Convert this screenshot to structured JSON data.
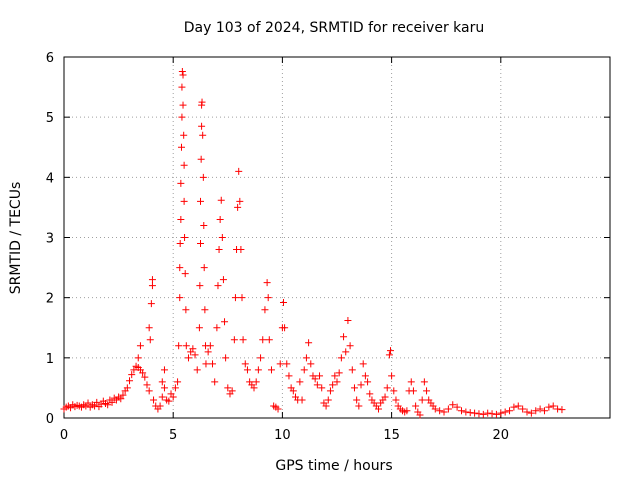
{
  "chart_data": {
    "type": "scatter",
    "title": "Day 103 of 2024, SRMTID for receiver karu",
    "xlabel": "GPS time / hours",
    "ylabel": "SRMTID / TECUs",
    "xlim": [
      0,
      25
    ],
    "ylim": [
      0,
      6
    ],
    "xticks": [
      0,
      5,
      10,
      15,
      20
    ],
    "yticks": [
      0,
      1,
      2,
      3,
      4,
      5,
      6
    ],
    "grid": true,
    "marker": "plus",
    "color": "#ff0000",
    "series": [
      {
        "name": "SRMTID",
        "points": [
          [
            0.0,
            0.15
          ],
          [
            0.1,
            0.18
          ],
          [
            0.2,
            0.2
          ],
          [
            0.3,
            0.17
          ],
          [
            0.4,
            0.22
          ],
          [
            0.5,
            0.19
          ],
          [
            0.6,
            0.21
          ],
          [
            0.7,
            0.2
          ],
          [
            0.8,
            0.18
          ],
          [
            0.9,
            0.22
          ],
          [
            1.0,
            0.2
          ],
          [
            1.1,
            0.25
          ],
          [
            1.2,
            0.18
          ],
          [
            1.3,
            0.22
          ],
          [
            1.4,
            0.2
          ],
          [
            1.5,
            0.26
          ],
          [
            1.6,
            0.19
          ],
          [
            1.7,
            0.23
          ],
          [
            1.8,
            0.28
          ],
          [
            1.9,
            0.24
          ],
          [
            2.0,
            0.22
          ],
          [
            2.1,
            0.3
          ],
          [
            2.2,
            0.26
          ],
          [
            2.3,
            0.33
          ],
          [
            2.4,
            0.3
          ],
          [
            2.5,
            0.35
          ],
          [
            2.6,
            0.32
          ],
          [
            2.7,
            0.38
          ],
          [
            2.8,
            0.45
          ],
          [
            2.9,
            0.5
          ],
          [
            3.0,
            0.62
          ],
          [
            3.1,
            0.72
          ],
          [
            3.2,
            0.8
          ],
          [
            3.3,
            0.86
          ],
          [
            3.4,
            0.84
          ],
          [
            3.5,
            0.8
          ],
          [
            3.6,
            0.75
          ],
          [
            3.7,
            0.68
          ],
          [
            3.8,
            0.55
          ],
          [
            3.9,
            0.45
          ],
          [
            3.4,
            1.0
          ],
          [
            3.5,
            1.2
          ],
          [
            3.9,
            1.5
          ],
          [
            4.0,
            1.9
          ],
          [
            4.05,
            2.2
          ],
          [
            4.05,
            2.3
          ],
          [
            3.95,
            1.3
          ],
          [
            4.1,
            0.3
          ],
          [
            4.2,
            0.2
          ],
          [
            4.3,
            0.15
          ],
          [
            4.4,
            0.2
          ],
          [
            4.5,
            0.35
          ],
          [
            4.6,
            0.5
          ],
          [
            4.7,
            0.3
          ],
          [
            4.8,
            0.28
          ],
          [
            4.9,
            0.4
          ],
          [
            5.0,
            0.35
          ],
          [
            4.5,
            0.6
          ],
          [
            4.6,
            0.8
          ],
          [
            5.1,
            0.5
          ],
          [
            5.2,
            0.6
          ],
          [
            5.25,
            1.2
          ],
          [
            5.3,
            2.0
          ],
          [
            5.3,
            2.5
          ],
          [
            5.32,
            2.9
          ],
          [
            5.35,
            3.3
          ],
          [
            5.35,
            3.9
          ],
          [
            5.38,
            4.5
          ],
          [
            5.4,
            5.0
          ],
          [
            5.4,
            5.5
          ],
          [
            5.42,
            5.76
          ],
          [
            5.45,
            5.7
          ],
          [
            5.45,
            5.2
          ],
          [
            5.48,
            4.7
          ],
          [
            5.5,
            4.2
          ],
          [
            5.5,
            3.6
          ],
          [
            5.52,
            3.0
          ],
          [
            5.55,
            2.4
          ],
          [
            5.58,
            1.8
          ],
          [
            5.6,
            1.2
          ],
          [
            5.7,
            1.0
          ],
          [
            5.8,
            1.1
          ],
          [
            5.9,
            1.15
          ],
          [
            6.0,
            1.05
          ],
          [
            6.1,
            0.8
          ],
          [
            6.2,
            1.5
          ],
          [
            6.22,
            2.2
          ],
          [
            6.25,
            2.9
          ],
          [
            6.25,
            3.6
          ],
          [
            6.28,
            4.3
          ],
          [
            6.3,
            4.85
          ],
          [
            6.3,
            5.2
          ],
          [
            6.32,
            5.25
          ],
          [
            6.35,
            4.7
          ],
          [
            6.38,
            4.0
          ],
          [
            6.4,
            3.2
          ],
          [
            6.42,
            2.5
          ],
          [
            6.45,
            1.8
          ],
          [
            6.48,
            1.2
          ],
          [
            6.5,
            0.9
          ],
          [
            6.6,
            1.1
          ],
          [
            6.7,
            1.2
          ],
          [
            6.8,
            0.9
          ],
          [
            6.9,
            0.6
          ],
          [
            7.0,
            1.5
          ],
          [
            7.05,
            2.2
          ],
          [
            7.1,
            2.8
          ],
          [
            7.15,
            3.3
          ],
          [
            7.2,
            3.62
          ],
          [
            7.25,
            3.0
          ],
          [
            7.3,
            2.3
          ],
          [
            7.35,
            1.6
          ],
          [
            7.4,
            1.0
          ],
          [
            7.5,
            0.5
          ],
          [
            7.6,
            0.4
          ],
          [
            7.7,
            0.45
          ],
          [
            7.8,
            1.3
          ],
          [
            7.85,
            2.0
          ],
          [
            7.9,
            2.8
          ],
          [
            7.95,
            3.5
          ],
          [
            8.0,
            4.1
          ],
          [
            8.05,
            3.6
          ],
          [
            8.1,
            2.8
          ],
          [
            8.15,
            2.0
          ],
          [
            8.2,
            1.3
          ],
          [
            8.3,
            0.9
          ],
          [
            8.4,
            0.8
          ],
          [
            8.5,
            0.6
          ],
          [
            8.6,
            0.55
          ],
          [
            8.7,
            0.5
          ],
          [
            8.8,
            0.6
          ],
          [
            8.9,
            0.8
          ],
          [
            9.0,
            1.0
          ],
          [
            9.1,
            1.3
          ],
          [
            9.2,
            1.8
          ],
          [
            9.3,
            2.25
          ],
          [
            9.35,
            2.0
          ],
          [
            9.4,
            1.3
          ],
          [
            9.5,
            0.8
          ],
          [
            9.6,
            0.2
          ],
          [
            9.7,
            0.18
          ],
          [
            9.8,
            0.15
          ],
          [
            9.9,
            0.9
          ],
          [
            10.0,
            1.5
          ],
          [
            10.05,
            1.92
          ],
          [
            10.1,
            1.5
          ],
          [
            10.2,
            0.9
          ],
          [
            10.3,
            0.7
          ],
          [
            10.4,
            0.5
          ],
          [
            10.5,
            0.45
          ],
          [
            10.6,
            0.35
          ],
          [
            10.7,
            0.3
          ],
          [
            10.8,
            0.6
          ],
          [
            10.9,
            0.3
          ],
          [
            11.0,
            0.8
          ],
          [
            11.1,
            1.0
          ],
          [
            11.2,
            1.25
          ],
          [
            11.3,
            0.9
          ],
          [
            11.4,
            0.7
          ],
          [
            11.5,
            0.65
          ],
          [
            11.6,
            0.55
          ],
          [
            11.7,
            0.7
          ],
          [
            11.8,
            0.5
          ],
          [
            11.9,
            0.25
          ],
          [
            12.0,
            0.2
          ],
          [
            12.1,
            0.3
          ],
          [
            12.2,
            0.45
          ],
          [
            12.3,
            0.55
          ],
          [
            12.4,
            0.7
          ],
          [
            12.5,
            0.6
          ],
          [
            12.6,
            0.75
          ],
          [
            12.7,
            1.0
          ],
          [
            12.8,
            1.35
          ],
          [
            12.9,
            1.1
          ],
          [
            13.0,
            1.62
          ],
          [
            13.1,
            1.2
          ],
          [
            13.2,
            0.8
          ],
          [
            13.3,
            0.5
          ],
          [
            13.4,
            0.3
          ],
          [
            13.5,
            0.2
          ],
          [
            13.6,
            0.55
          ],
          [
            13.7,
            0.9
          ],
          [
            13.8,
            0.7
          ],
          [
            13.9,
            0.6
          ],
          [
            14.0,
            0.4
          ],
          [
            14.1,
            0.3
          ],
          [
            14.2,
            0.25
          ],
          [
            14.3,
            0.2
          ],
          [
            14.4,
            0.15
          ],
          [
            14.5,
            0.25
          ],
          [
            14.6,
            0.3
          ],
          [
            14.7,
            0.35
          ],
          [
            14.8,
            0.5
          ],
          [
            14.9,
            1.05
          ],
          [
            14.95,
            1.12
          ],
          [
            15.0,
            0.7
          ],
          [
            15.1,
            0.45
          ],
          [
            15.2,
            0.3
          ],
          [
            15.3,
            0.2
          ],
          [
            15.4,
            0.15
          ],
          [
            15.5,
            0.12
          ],
          [
            15.6,
            0.1
          ],
          [
            15.7,
            0.12
          ],
          [
            15.8,
            0.45
          ],
          [
            15.9,
            0.6
          ],
          [
            16.0,
            0.45
          ],
          [
            16.1,
            0.2
          ],
          [
            16.2,
            0.1
          ],
          [
            16.3,
            0.05
          ],
          [
            16.4,
            0.3
          ],
          [
            16.5,
            0.6
          ],
          [
            16.6,
            0.45
          ],
          [
            16.7,
            0.3
          ],
          [
            16.8,
            0.25
          ],
          [
            16.9,
            0.2
          ],
          [
            17.0,
            0.15
          ],
          [
            17.2,
            0.12
          ],
          [
            17.4,
            0.1
          ],
          [
            17.6,
            0.15
          ],
          [
            17.8,
            0.22
          ],
          [
            18.0,
            0.18
          ],
          [
            18.2,
            0.12
          ],
          [
            18.4,
            0.1
          ],
          [
            18.6,
            0.09
          ],
          [
            18.8,
            0.08
          ],
          [
            19.0,
            0.07
          ],
          [
            19.2,
            0.06
          ],
          [
            19.4,
            0.08
          ],
          [
            19.6,
            0.07
          ],
          [
            19.8,
            0.06
          ],
          [
            20.0,
            0.08
          ],
          [
            20.2,
            0.1
          ],
          [
            20.4,
            0.12
          ],
          [
            20.6,
            0.18
          ],
          [
            20.8,
            0.2
          ],
          [
            21.0,
            0.15
          ],
          [
            21.2,
            0.1
          ],
          [
            21.4,
            0.08
          ],
          [
            21.6,
            0.12
          ],
          [
            21.8,
            0.15
          ],
          [
            22.0,
            0.12
          ],
          [
            22.2,
            0.18
          ],
          [
            22.4,
            0.2
          ],
          [
            22.6,
            0.15
          ],
          [
            22.8,
            0.14
          ]
        ]
      }
    ]
  }
}
